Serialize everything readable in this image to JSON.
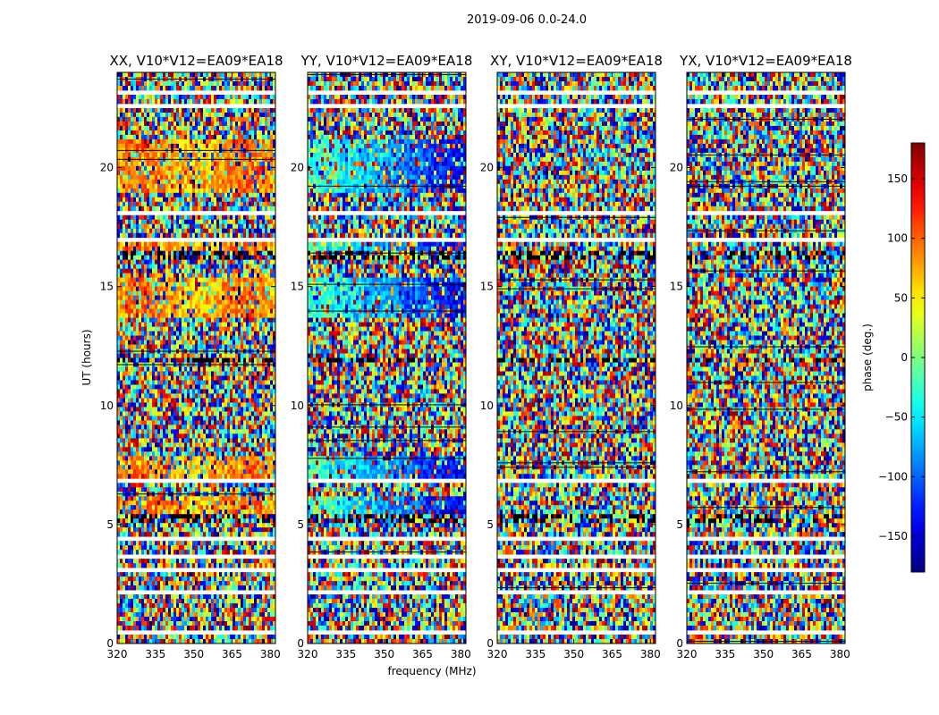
{
  "chart_data": {
    "type": "heatmap",
    "suptitle": "2019-09-06 0.0-24.0",
    "xlabel": "frequency (MHz)",
    "ylabel": "UT (hours)",
    "xlim": [
      320,
      382
    ],
    "ylim": [
      0,
      24
    ],
    "xticks": [
      320,
      335,
      350,
      365,
      380
    ],
    "yticks": [
      0,
      5,
      10,
      15,
      20
    ],
    "panels": [
      {
        "name": "XX, V10*V12=EA09*EA18",
        "corr": "XX"
      },
      {
        "name": "YY, V10*V12=EA09*EA18",
        "corr": "YY"
      },
      {
        "name": "XY, V10*V12=EA09*EA18",
        "corr": "XY"
      },
      {
        "name": "YX, V10*V12=EA09*EA18",
        "corr": "YX"
      }
    ],
    "colorbar": {
      "label": "phase (deg.)",
      "range": [
        -180,
        180
      ],
      "ticks": [
        150,
        100,
        50,
        0,
        -50,
        -100,
        -150
      ],
      "tick_labels": [
        "150",
        "100",
        "50",
        "0",
        "−50",
        "−100",
        "−150"
      ],
      "colormap": "jet"
    },
    "blank_bands_hours": [
      [
        0.45,
        0.55
      ],
      [
        1.48,
        1.58
      ],
      [
        2.05,
        2.3
      ],
      [
        3.05,
        3.15
      ],
      [
        3.65,
        3.7
      ],
      [
        4.4,
        4.45
      ],
      [
        4.9,
        4.95
      ],
      [
        5.65,
        5.7
      ],
      [
        6.3,
        6.35
      ],
      [
        6.75,
        6.95
      ],
      [
        7.45,
        7.5
      ],
      [
        8.1,
        8.15
      ],
      [
        8.95,
        9.0
      ],
      [
        10.25,
        10.3
      ],
      [
        11.55,
        11.65
      ],
      [
        12.35,
        12.4
      ],
      [
        12.95,
        13.0
      ],
      [
        14.0,
        14.1
      ],
      [
        16.95,
        17.0
      ],
      [
        17.6,
        17.7
      ],
      [
        18.05,
        18.15
      ],
      [
        18.85,
        19.0
      ],
      [
        22.55,
        22.75
      ],
      [
        23.1,
        23.2
      ]
    ],
    "dense_bands_hours": [
      [
        3.85,
        3.95
      ],
      [
        5.05,
        5.45
      ],
      [
        11.85,
        11.95
      ],
      [
        14.95,
        15.05
      ],
      [
        16.15,
        16.45
      ],
      [
        13.45,
        13.5
      ]
    ]
  }
}
